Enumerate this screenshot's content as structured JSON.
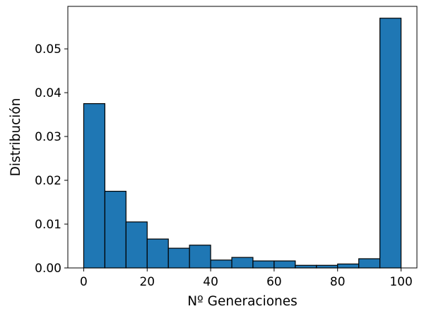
{
  "chart_data": {
    "type": "bar",
    "title": "",
    "xlabel": "Nº Generaciones",
    "ylabel": "Distribución",
    "bar_color": "#1f77b4",
    "edge_color": "#000000",
    "grid": false,
    "legend": "none",
    "xlim": [
      -5,
      105
    ],
    "ylim": [
      0,
      0.0597
    ],
    "x_ticks": [
      0,
      20,
      40,
      60,
      80,
      100
    ],
    "x_tick_labels": [
      "0",
      "20",
      "40",
      "60",
      "80",
      "100"
    ],
    "y_ticks": [
      0,
      0.01,
      0.02,
      0.03,
      0.04,
      0.05
    ],
    "y_tick_labels": [
      "0.00",
      "0.01",
      "0.02",
      "0.03",
      "0.04",
      "0.05"
    ],
    "bin_edges": [
      0,
      6.67,
      13.33,
      20,
      26.67,
      33.33,
      40,
      46.67,
      53.33,
      60,
      66.67,
      73.33,
      80,
      86.67,
      93.33,
      100
    ],
    "values": [
      0.0375,
      0.0175,
      0.0105,
      0.0066,
      0.0045,
      0.0052,
      0.0018,
      0.0024,
      0.0016,
      0.0016,
      0.0006,
      0.0006,
      0.0009,
      0.0021,
      0.057
    ]
  }
}
